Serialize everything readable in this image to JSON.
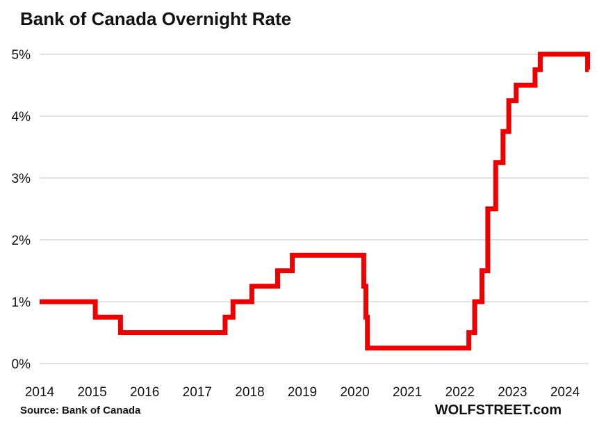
{
  "chart": {
    "title": "Bank of Canada Overnight Rate",
    "source": "Source: Bank of Canada",
    "branding": "WOLFSTREET.com"
  },
  "chart_data": {
    "type": "line",
    "subtype": "step-after",
    "title": "Bank of Canada Overnight Rate",
    "ylabel": "",
    "xlabel": "",
    "unit": "percent",
    "xlim": [
      2014.0,
      2024.45
    ],
    "ylim": [
      0,
      5
    ],
    "grid": "horizontal",
    "gridline_color": "#d9d9d9",
    "line_color": "#ee0000",
    "line_width": 7,
    "x_ticks": [
      2014,
      2015,
      2016,
      2017,
      2018,
      2019,
      2020,
      2021,
      2022,
      2023,
      2024
    ],
    "y_ticks": [
      {
        "value": 0,
        "label": "0%"
      },
      {
        "value": 1,
        "label": "1%"
      },
      {
        "value": 2,
        "label": "2%"
      },
      {
        "value": 3,
        "label": "3%"
      },
      {
        "value": 4,
        "label": "4%"
      },
      {
        "value": 5,
        "label": "5%"
      }
    ],
    "series": [
      {
        "name": "Bank of Canada overnight rate",
        "color": "#ee0000",
        "x_end": 2024.45,
        "points": [
          [
            2014.0,
            1.0
          ],
          [
            2015.06,
            0.75
          ],
          [
            2015.54,
            0.5
          ],
          [
            2017.53,
            0.75
          ],
          [
            2017.68,
            1.0
          ],
          [
            2018.04,
            1.25
          ],
          [
            2018.53,
            1.5
          ],
          [
            2018.81,
            1.75
          ],
          [
            2020.17,
            1.25
          ],
          [
            2020.21,
            0.75
          ],
          [
            2020.24,
            0.25
          ],
          [
            2022.17,
            0.5
          ],
          [
            2022.28,
            1.0
          ],
          [
            2022.42,
            1.5
          ],
          [
            2022.53,
            2.5
          ],
          [
            2022.68,
            3.25
          ],
          [
            2022.82,
            3.75
          ],
          [
            2022.93,
            4.25
          ],
          [
            2023.07,
            4.5
          ],
          [
            2023.43,
            4.75
          ],
          [
            2023.53,
            5.0
          ],
          [
            2024.43,
            4.75
          ]
        ]
      }
    ]
  }
}
